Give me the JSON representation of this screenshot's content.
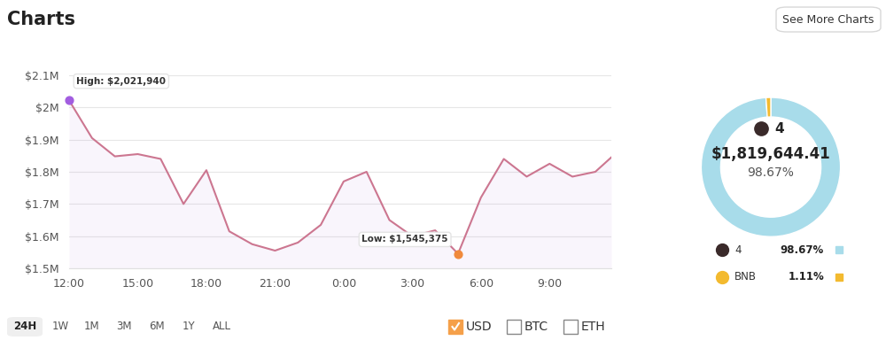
{
  "header": {
    "title": "Charts",
    "button": "See More Charts"
  },
  "chart_data": [
    {
      "type": "line",
      "x": [
        0,
        1,
        2,
        3,
        4,
        5,
        6,
        7,
        8,
        9,
        10,
        11,
        12,
        13,
        14,
        15,
        16,
        17,
        18,
        19,
        20,
        21,
        22,
        23,
        23.7
      ],
      "values": [
        2021940,
        1905000,
        1848000,
        1855000,
        1840000,
        1700000,
        1805000,
        1615000,
        1575000,
        1555000,
        1580000,
        1635000,
        1770000,
        1800000,
        1650000,
        1600000,
        1618000,
        1545375,
        1720000,
        1840000,
        1785000,
        1825000,
        1785000,
        1800000,
        1845000
      ],
      "color": "#cc7690",
      "xlim": [
        0,
        23.7
      ],
      "xticks": [
        {
          "value": 0,
          "label": "12:00"
        },
        {
          "value": 3,
          "label": "15:00"
        },
        {
          "value": 6,
          "label": "18:00"
        },
        {
          "value": 9,
          "label": "21:00"
        },
        {
          "value": 12,
          "label": "0:00"
        },
        {
          "value": 15,
          "label": "3:00"
        },
        {
          "value": 18,
          "label": "6:00"
        },
        {
          "value": 21,
          "label": "9:00"
        }
      ],
      "ylim": [
        1500000,
        2100000
      ],
      "yticks": [
        {
          "value": 1500000,
          "label": "$1.5M"
        },
        {
          "value": 1600000,
          "label": "$1.6M"
        },
        {
          "value": 1700000,
          "label": "$1.7M"
        },
        {
          "value": 1800000,
          "label": "$1.8M"
        },
        {
          "value": 1900000,
          "label": "$1.9M"
        },
        {
          "value": 2000000,
          "label": "$2M"
        },
        {
          "value": 2100000,
          "label": "$2.1M"
        }
      ],
      "grid": true,
      "annotations": [
        {
          "text": "High: $2,021,940",
          "x": 0,
          "y": 2021940,
          "color": "#a25de0"
        },
        {
          "text": "Low: $1,545,375",
          "x": 17,
          "y": 1545375,
          "color": "#f08a3c"
        }
      ]
    },
    {
      "type": "pie",
      "categories": [
        "4",
        "BNB"
      ],
      "values": [
        98.67,
        1.11
      ],
      "value_labels": [
        "98.67%",
        "1.11%"
      ],
      "colors": [
        "#a8dcea",
        "#f3ba2f"
      ],
      "center_label": "$1,819,644.41",
      "legend": "bottom"
    }
  ],
  "controls": {
    "periods": [
      "24H",
      "1W",
      "1M",
      "3M",
      "6M",
      "1Y",
      "ALL"
    ],
    "selected_period": "24H",
    "currencies": [
      "USD",
      "BTC",
      "ETH"
    ],
    "checked": [
      "USD"
    ]
  }
}
